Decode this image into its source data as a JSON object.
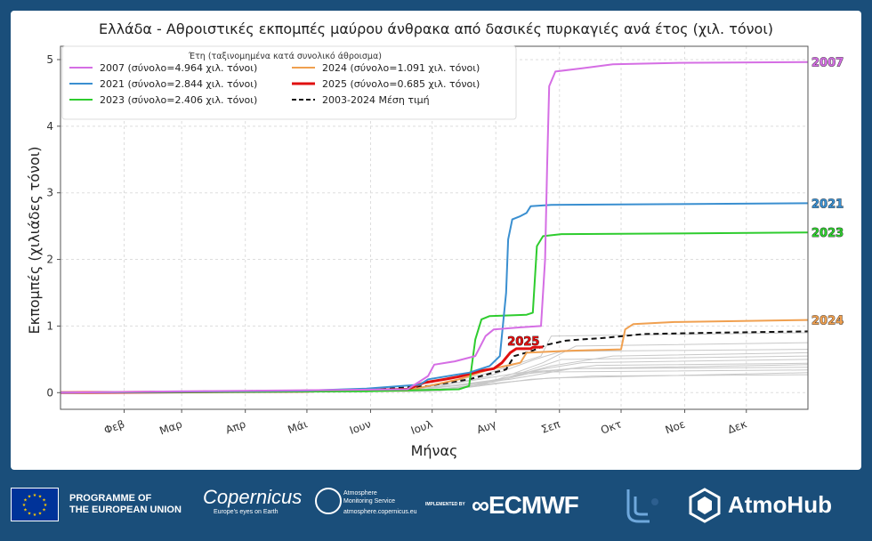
{
  "chart_data": {
    "type": "line",
    "title": "Ελλάδα - Αθροιστικές εκπομπές μαύρου άνθρακα από δασικές πυρκαγιές ανά έτος (χιλ. τόνοι)",
    "xlabel": "Μήνας",
    "ylabel": "Εκπομπές (χιλιάδες τόνοι)",
    "x_unit": "day_of_year",
    "xlim": [
      1,
      365
    ],
    "ylim": [
      -0.25,
      5.2
    ],
    "yticks": [
      0,
      1,
      2,
      3,
      4,
      5
    ],
    "xticks": [
      {
        "day": 32,
        "label": "Φεβ"
      },
      {
        "day": 60,
        "label": "Μαρ"
      },
      {
        "day": 91,
        "label": "Απρ"
      },
      {
        "day": 121,
        "label": "Μάι"
      },
      {
        "day": 152,
        "label": "Ιουν"
      },
      {
        "day": 182,
        "label": "Ιουλ"
      },
      {
        "day": 213,
        "label": "Αυγ"
      },
      {
        "day": 244,
        "label": "Σεπ"
      },
      {
        "day": 274,
        "label": "Οκτ"
      },
      {
        "day": 305,
        "label": "Νοε"
      },
      {
        "day": 335,
        "label": "Δεκ"
      }
    ],
    "grid": true,
    "legend": {
      "title": "Έτη (ταξινομημένα κατά συνολικό άθροισμα)",
      "placement": "top-left",
      "columns": 2
    },
    "series": [
      {
        "name": "2007 (σύνολο=4.964 χιλ. τόνοι)",
        "end_label": "2007",
        "color": "#d56ee4",
        "style": "solid",
        "width": 2,
        "points": [
          [
            1,
            0
          ],
          [
            60,
            0.02
          ],
          [
            170,
            0.05
          ],
          [
            180,
            0.25
          ],
          [
            183,
            0.42
          ],
          [
            193,
            0.47
          ],
          [
            203,
            0.55
          ],
          [
            208,
            0.85
          ],
          [
            212,
            0.95
          ],
          [
            225,
            0.98
          ],
          [
            235,
            1.0
          ],
          [
            237,
            2.0
          ],
          [
            238,
            3.4
          ],
          [
            239,
            4.6
          ],
          [
            242,
            4.82
          ],
          [
            255,
            4.87
          ],
          [
            270,
            4.93
          ],
          [
            300,
            4.95
          ],
          [
            365,
            4.964
          ]
        ]
      },
      {
        "name": "2021 (σύνολο=2.844 χιλ. τόνοι)",
        "end_label": "2021",
        "color": "#3a8fd0",
        "style": "solid",
        "width": 2,
        "points": [
          [
            1,
            0
          ],
          [
            120,
            0.03
          ],
          [
            150,
            0.06
          ],
          [
            176,
            0.12
          ],
          [
            180,
            0.2
          ],
          [
            200,
            0.3
          ],
          [
            210,
            0.4
          ],
          [
            215,
            0.55
          ],
          [
            218,
            1.5
          ],
          [
            219,
            2.3
          ],
          [
            221,
            2.6
          ],
          [
            225,
            2.65
          ],
          [
            228,
            2.7
          ],
          [
            230,
            2.8
          ],
          [
            240,
            2.82
          ],
          [
            300,
            2.83
          ],
          [
            365,
            2.844
          ]
        ]
      },
      {
        "name": "2023 (σύνολο=2.406 χιλ. τόνοι)",
        "end_label": "2023",
        "color": "#2ecc2e",
        "style": "solid",
        "width": 2,
        "points": [
          [
            1,
            0
          ],
          [
            150,
            0.02
          ],
          [
            195,
            0.05
          ],
          [
            200,
            0.1
          ],
          [
            203,
            0.8
          ],
          [
            206,
            1.1
          ],
          [
            210,
            1.15
          ],
          [
            228,
            1.17
          ],
          [
            231,
            1.2
          ],
          [
            233,
            2.2
          ],
          [
            236,
            2.35
          ],
          [
            245,
            2.38
          ],
          [
            300,
            2.39
          ],
          [
            365,
            2.406
          ]
        ]
      },
      {
        "name": "2024 (σύνολο=1.091 χιλ. τόνοι)",
        "end_label": "2024",
        "color": "#f0a050",
        "style": "solid",
        "width": 2,
        "points": [
          [
            1,
            0
          ],
          [
            170,
            0.03
          ],
          [
            180,
            0.1
          ],
          [
            195,
            0.2
          ],
          [
            210,
            0.35
          ],
          [
            225,
            0.45
          ],
          [
            228,
            0.6
          ],
          [
            250,
            0.63
          ],
          [
            274,
            0.65
          ],
          [
            276,
            0.95
          ],
          [
            280,
            1.03
          ],
          [
            300,
            1.06
          ],
          [
            365,
            1.091
          ]
        ]
      },
      {
        "name": "2025 (σύνολο=0.685 χιλ. τόνοι)",
        "end_label": "2025",
        "color": "#e01010",
        "style": "solid",
        "width": 3,
        "points": [
          [
            1,
            0
          ],
          [
            120,
            0.02
          ],
          [
            170,
            0.05
          ],
          [
            178,
            0.15
          ],
          [
            188,
            0.2
          ],
          [
            195,
            0.24
          ],
          [
            200,
            0.28
          ],
          [
            206,
            0.33
          ],
          [
            212,
            0.36
          ],
          [
            216,
            0.45
          ],
          [
            220,
            0.6
          ],
          [
            223,
            0.66
          ],
          [
            230,
            0.66
          ],
          [
            231,
            0.68
          ],
          [
            236,
            0.685
          ]
        ]
      },
      {
        "name": "2003-2024 Μέση τιμή",
        "color": "#111111",
        "style": "dashed",
        "width": 2,
        "points": [
          [
            1,
            0
          ],
          [
            150,
            0.04
          ],
          [
            180,
            0.1
          ],
          [
            200,
            0.2
          ],
          [
            212,
            0.3
          ],
          [
            218,
            0.35
          ],
          [
            222,
            0.55
          ],
          [
            230,
            0.62
          ],
          [
            238,
            0.72
          ],
          [
            247,
            0.78
          ],
          [
            255,
            0.8
          ],
          [
            265,
            0.82
          ],
          [
            275,
            0.85
          ],
          [
            285,
            0.88
          ],
          [
            320,
            0.9
          ],
          [
            365,
            0.92
          ]
        ]
      }
    ],
    "background_series": [
      [
        [
          1,
          0
        ],
        [
          170,
          0.03
        ],
        [
          200,
          0.08
        ],
        [
          230,
          0.2
        ],
        [
          260,
          0.25
        ],
        [
          365,
          0.27
        ]
      ],
      [
        [
          1,
          0
        ],
        [
          165,
          0.05
        ],
        [
          195,
          0.15
        ],
        [
          225,
          0.3
        ],
        [
          250,
          0.36
        ],
        [
          365,
          0.38
        ]
      ],
      [
        [
          1,
          0
        ],
        [
          175,
          0.02
        ],
        [
          205,
          0.12
        ],
        [
          235,
          0.35
        ],
        [
          255,
          0.45
        ],
        [
          365,
          0.5
        ]
      ],
      [
        [
          1,
          0
        ],
        [
          160,
          0.04
        ],
        [
          190,
          0.1
        ],
        [
          215,
          0.2
        ],
        [
          240,
          0.4
        ],
        [
          270,
          0.55
        ],
        [
          365,
          0.6
        ]
      ],
      [
        [
          1,
          0
        ],
        [
          180,
          0.06
        ],
        [
          210,
          0.25
        ],
        [
          232,
          0.5
        ],
        [
          245,
          0.62
        ],
        [
          365,
          0.65
        ]
      ],
      [
        [
          1,
          0
        ],
        [
          170,
          0.02
        ],
        [
          205,
          0.1
        ],
        [
          236,
          0.45
        ],
        [
          252,
          0.7
        ],
        [
          365,
          0.75
        ]
      ],
      [
        [
          1,
          0
        ],
        [
          175,
          0.05
        ],
        [
          210,
          0.3
        ],
        [
          235,
          0.55
        ],
        [
          240,
          0.85
        ],
        [
          365,
          0.9
        ]
      ],
      [
        [
          1,
          0
        ],
        [
          180,
          0.03
        ],
        [
          215,
          0.15
        ],
        [
          240,
          0.22
        ],
        [
          365,
          0.3
        ]
      ],
      [
        [
          1,
          0
        ],
        [
          160,
          0.04
        ],
        [
          200,
          0.12
        ],
        [
          228,
          0.28
        ],
        [
          262,
          0.41
        ],
        [
          365,
          0.44
        ]
      ],
      [
        [
          1,
          0
        ],
        [
          185,
          0.02
        ],
        [
          215,
          0.18
        ],
        [
          232,
          0.31
        ],
        [
          365,
          0.34
        ]
      ],
      [
        [
          1,
          0
        ],
        [
          170,
          0.03
        ],
        [
          212,
          0.16
        ],
        [
          245,
          0.5
        ],
        [
          365,
          0.55
        ]
      ],
      [
        [
          1,
          0
        ],
        [
          175,
          0.04
        ],
        [
          220,
          0.2
        ],
        [
          250,
          0.36
        ],
        [
          365,
          0.42
        ]
      ]
    ]
  },
  "footer": {
    "eu_text_line1": "PROGRAMME OF",
    "eu_text_line2": "THE EUROPEAN UNION",
    "copernicus": "Copernicus",
    "copernicus_tagline": "Europe's eyes on Earth",
    "cams_line1": "Atmosphere",
    "cams_line2": "Monitoring Service",
    "cams_url": "atmosphere.copernicus.eu",
    "implemented_by": "IMPLEMENTED BY",
    "ecmwf": "ECMWF",
    "atmohub": "AtmoHub"
  }
}
